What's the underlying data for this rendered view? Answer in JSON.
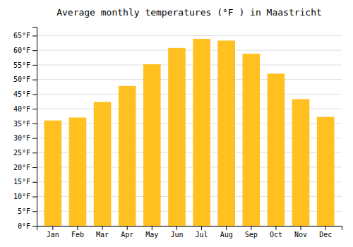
{
  "chart_data": {
    "type": "bar",
    "title": "Average monthly temperatures (°F ) in Maastricht",
    "categories": [
      "Jan",
      "Feb",
      "Mar",
      "Apr",
      "May",
      "Jun",
      "Jul",
      "Aug",
      "Sep",
      "Oct",
      "Nov",
      "Dec"
    ],
    "values": [
      36.0,
      37.0,
      42.3,
      47.8,
      55.2,
      60.8,
      63.9,
      63.3,
      58.8,
      52.0,
      43.3,
      37.2
    ],
    "color": "#FFC020",
    "ylim": [
      0,
      68
    ],
    "yticks": [
      {
        "value": 0,
        "label": "0°F"
      },
      {
        "value": 5,
        "label": "5°F"
      },
      {
        "value": 10,
        "label": "10°F"
      },
      {
        "value": 15,
        "label": "15°F"
      },
      {
        "value": 20,
        "label": "20°F"
      },
      {
        "value": 25,
        "label": "25°F"
      },
      {
        "value": 30,
        "label": "30°F"
      },
      {
        "value": 35,
        "label": "35°F"
      },
      {
        "value": 40,
        "label": "40°F"
      },
      {
        "value": 45,
        "label": "45°F"
      },
      {
        "value": 50,
        "label": "50°F"
      },
      {
        "value": 55,
        "label": "55°F"
      },
      {
        "value": 60,
        "label": "60°F"
      },
      {
        "value": 65,
        "label": "65°F"
      }
    ],
    "grid": true
  }
}
